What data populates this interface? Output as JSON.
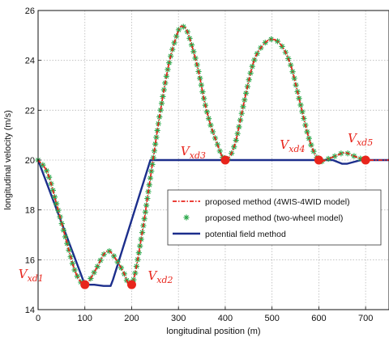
{
  "chart_data": {
    "type": "line",
    "xlabel": "longitudinal position (m)",
    "ylabel": "longitudinal velocity (m/s)",
    "xlim": [
      0,
      750
    ],
    "ylim": [
      14,
      26
    ],
    "xticks": [
      0,
      100,
      200,
      300,
      400,
      500,
      600,
      700
    ],
    "yticks": [
      14,
      16,
      18,
      20,
      22,
      24,
      26
    ],
    "grid": true,
    "legend": "center-right",
    "colors": {
      "proposed_4wis": "#e8251c",
      "proposed_two_wheel": "#2aa84a",
      "potential_field": "#1c2e8c",
      "waypoint": "#e8251c"
    },
    "series": [
      {
        "name": "proposed method (4WIS-4WID model)",
        "style": "dash-dot",
        "x": [
          0,
          20,
          40,
          60,
          80,
          100,
          120,
          140,
          150,
          160,
          180,
          200,
          220,
          240,
          260,
          280,
          300,
          310,
          320,
          340,
          360,
          380,
          400,
          420,
          440,
          460,
          480,
          500,
          520,
          540,
          560,
          580,
          600,
          620,
          640,
          655,
          670,
          690,
          700,
          750
        ],
        "y": [
          20,
          19.5,
          18.2,
          16.8,
          15.5,
          15.0,
          15.5,
          16.2,
          16.35,
          16.2,
          15.6,
          15.0,
          16.8,
          19.3,
          21.8,
          23.9,
          25.2,
          25.35,
          25.1,
          23.8,
          22.0,
          20.8,
          20.0,
          20.6,
          22.3,
          23.9,
          24.6,
          24.85,
          24.6,
          23.8,
          22.3,
          20.8,
          20.0,
          20.05,
          20.2,
          20.3,
          20.2,
          20.05,
          20.0,
          20.0
        ]
      },
      {
        "name": "proposed method (two-wheel model)",
        "style": "markers",
        "x": [
          0,
          20,
          40,
          60,
          80,
          100,
          120,
          140,
          150,
          160,
          180,
          200,
          220,
          240,
          260,
          280,
          300,
          310,
          320,
          340,
          360,
          380,
          400,
          420,
          440,
          460,
          480,
          500,
          520,
          540,
          560,
          580,
          600,
          620,
          640,
          655,
          670,
          690,
          700
        ],
        "y": [
          20,
          19.5,
          18.2,
          16.8,
          15.5,
          15.0,
          15.5,
          16.2,
          16.35,
          16.2,
          15.6,
          15.0,
          16.8,
          19.3,
          21.8,
          23.9,
          25.2,
          25.35,
          25.1,
          23.8,
          22.0,
          20.8,
          20.0,
          20.6,
          22.3,
          23.9,
          24.6,
          24.85,
          24.6,
          23.8,
          22.3,
          20.8,
          20.0,
          20.05,
          20.2,
          20.3,
          20.2,
          20.05,
          20.0
        ]
      },
      {
        "name": "potential field method",
        "style": "solid",
        "x": [
          0,
          100,
          120,
          140,
          155,
          160,
          240,
          400,
          600,
          630,
          650,
          660,
          690,
          750
        ],
        "y": [
          20,
          15.0,
          15.0,
          14.95,
          14.95,
          15.2,
          20.0,
          20.0,
          20.0,
          20.0,
          19.85,
          19.85,
          20.0,
          20.0
        ]
      }
    ],
    "waypoints": [
      {
        "label": "V",
        "sub": "xd1",
        "x": 100,
        "y": 15
      },
      {
        "label": "V",
        "sub": "xd2",
        "x": 200,
        "y": 15
      },
      {
        "label": "V",
        "sub": "xd3",
        "x": 400,
        "y": 20
      },
      {
        "label": "V",
        "sub": "xd4",
        "x": 600,
        "y": 20
      },
      {
        "label": "V",
        "sub": "xd5",
        "x": 700,
        "y": 20
      }
    ]
  }
}
